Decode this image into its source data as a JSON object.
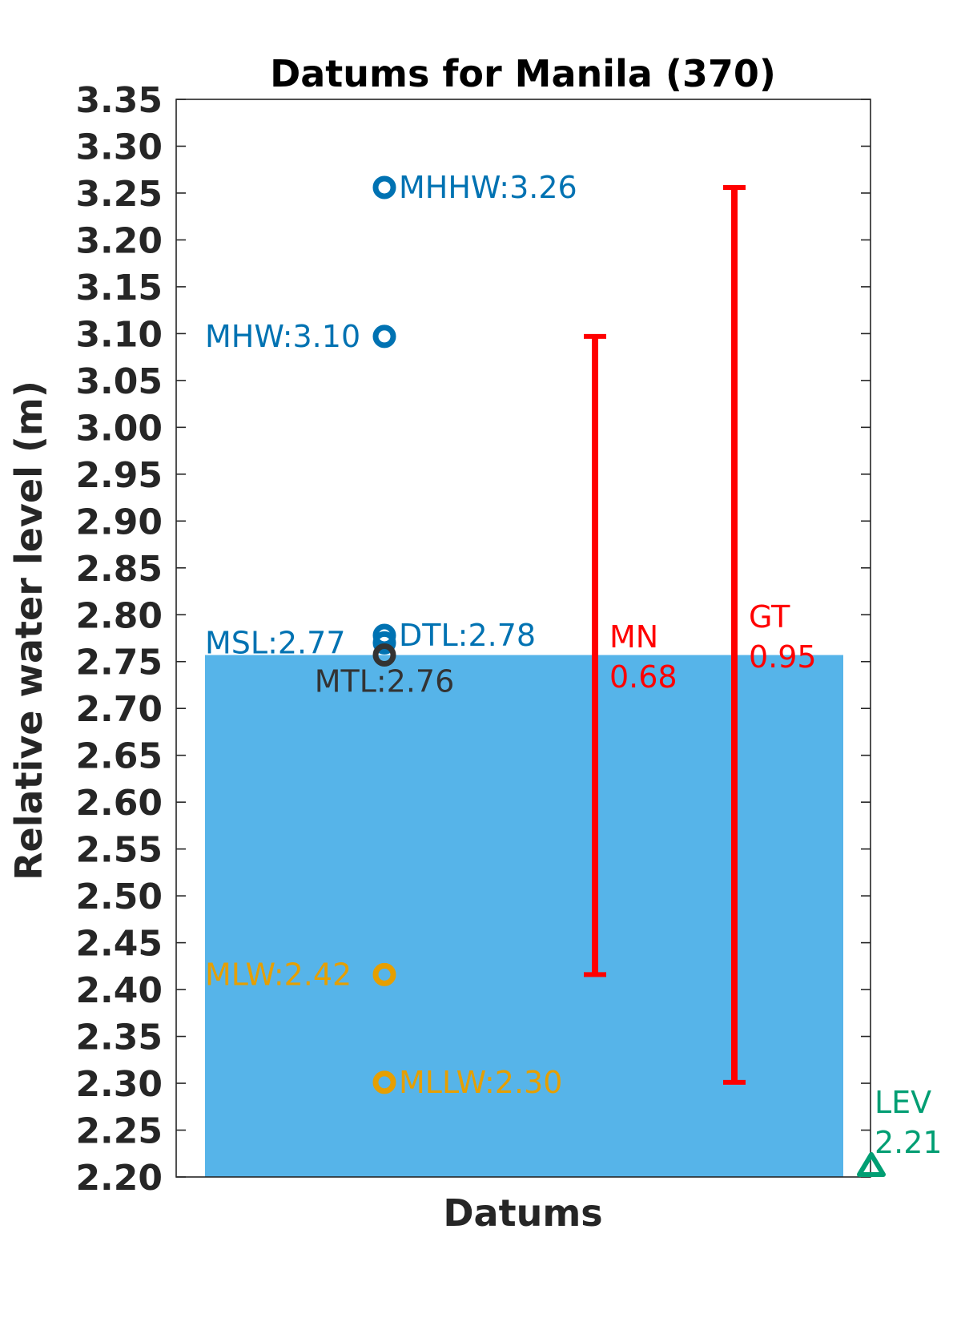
{
  "chart_data": {
    "type": "bar",
    "title": "Datums for Manila (370)",
    "xlabel": "Datums",
    "ylabel": "Relative water level (m)",
    "ylim": [
      2.2,
      3.35
    ],
    "yticks": [
      "2.20",
      "2.25",
      "2.30",
      "2.35",
      "2.40",
      "2.45",
      "2.50",
      "2.55",
      "2.60",
      "2.65",
      "2.70",
      "2.75",
      "2.80",
      "2.85",
      "2.90",
      "2.95",
      "3.00",
      "3.05",
      "3.10",
      "3.15",
      "3.20",
      "3.25",
      "3.30",
      "3.35"
    ],
    "bar": {
      "bottom": 2.2,
      "top": 2.757,
      "color": "#56B4E9"
    },
    "datums": [
      {
        "name": "MHHW",
        "label": "MHHW:3.26",
        "value": 3.256,
        "color": "#0072B2",
        "side": "right"
      },
      {
        "name": "MHW",
        "label": "MHW:3.10",
        "value": 3.097,
        "color": "#0072B2",
        "side": "left"
      },
      {
        "name": "DTL",
        "label": "DTL:2.78",
        "value": 2.778,
        "color": "#0072B2",
        "side": "right"
      },
      {
        "name": "MSL",
        "label": "MSL:2.77",
        "value": 2.77,
        "color": "#0072B2",
        "side": "left"
      },
      {
        "name": "MTL",
        "label": "MTL:2.76",
        "value": 2.757,
        "color": "#333333",
        "side": "below"
      },
      {
        "name": "MLW",
        "label": "MLW:2.42",
        "value": 2.416,
        "color": "#E69F00",
        "side": "left"
      },
      {
        "name": "MLLW",
        "label": "MLLW:2.30",
        "value": 2.301,
        "color": "#E69F00",
        "side": "right"
      }
    ],
    "ranges": [
      {
        "name": "MN",
        "label": "MN",
        "value_label": "0.68",
        "low": 2.416,
        "high": 3.097,
        "color": "#FF0000"
      },
      {
        "name": "GT",
        "label": "GT",
        "value_label": "0.95",
        "low": 2.301,
        "high": 3.256,
        "color": "#FF0000"
      }
    ],
    "lev": {
      "label": "LEV",
      "value_label": "2.21",
      "value": 2.212,
      "color": "#009E73"
    }
  }
}
